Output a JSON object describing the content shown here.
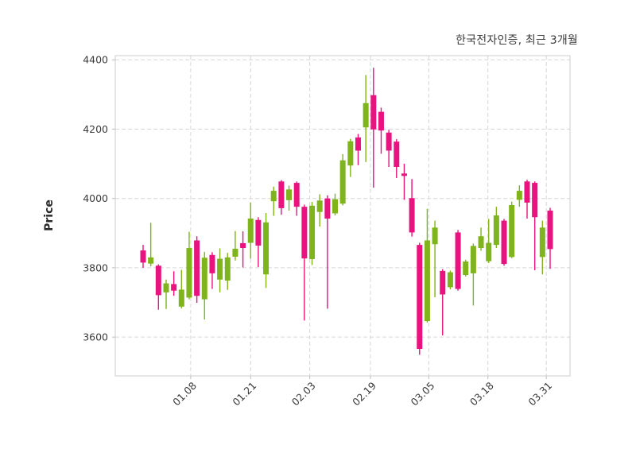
{
  "chart_data": {
    "type": "candlestick",
    "title": "한국전자인증, 최근 3개월",
    "ylabel": "Price",
    "ylim": [
      3488,
      4412
    ],
    "y_ticks": [
      3600,
      3800,
      4000,
      4200,
      4400
    ],
    "x_tick_labels": [
      "01.08",
      "01.21",
      "02.03",
      "02.19",
      "03.05",
      "03.18",
      "03.31"
    ],
    "x_tick_positions": [
      6.2,
      14.0,
      21.7,
      29.6,
      37.2,
      44.9,
      52.5
    ],
    "grid": true,
    "legend": "none",
    "colors": {
      "up": "#7fb41c",
      "down": "#e8137f",
      "grid": "#d6d6d6",
      "border": "#cccccc",
      "text": "#3b3b3b"
    },
    "candles_format": [
      "open",
      "high",
      "low",
      "close"
    ],
    "candles": [
      [
        3850,
        3866,
        3800,
        3815
      ],
      [
        3812,
        3930,
        3804,
        3830
      ],
      [
        3806,
        3810,
        3679,
        3721
      ],
      [
        3729,
        3766,
        3681,
        3755
      ],
      [
        3753,
        3790,
        3719,
        3734
      ],
      [
        3688,
        3794,
        3683,
        3737
      ],
      [
        3714,
        3904,
        3709,
        3857
      ],
      [
        3879,
        3891,
        3699,
        3719
      ],
      [
        3709,
        3846,
        3651,
        3829
      ],
      [
        3837,
        3845,
        3739,
        3784
      ],
      [
        3766,
        3856,
        3729,
        3826
      ],
      [
        3763,
        3843,
        3736,
        3830
      ],
      [
        3832,
        3906,
        3821,
        3855
      ],
      [
        3871,
        3905,
        3801,
        3857
      ],
      [
        3872,
        3988,
        3826,
        3942
      ],
      [
        3938,
        3946,
        3802,
        3864
      ],
      [
        3781,
        3958,
        3742,
        3931
      ],
      [
        3992,
        4034,
        3950,
        4022
      ],
      [
        4049,
        4053,
        3953,
        3972
      ],
      [
        3995,
        4037,
        3965,
        4026
      ],
      [
        4045,
        4049,
        3950,
        3976
      ],
      [
        3976,
        3982,
        3648,
        3827
      ],
      [
        3825,
        3990,
        3808,
        3979
      ],
      [
        3961,
        4012,
        3919,
        3994
      ],
      [
        4000,
        4009,
        3682,
        3942
      ],
      [
        3957,
        4014,
        3951,
        3998
      ],
      [
        3985,
        4128,
        3980,
        4110
      ],
      [
        4095,
        4172,
        4062,
        4165
      ],
      [
        4176,
        4186,
        4096,
        4138
      ],
      [
        4205,
        4356,
        4105,
        4275
      ],
      [
        4298,
        4377,
        4031,
        4199
      ],
      [
        4250,
        4262,
        4129,
        4196
      ],
      [
        4190,
        4198,
        4091,
        4138
      ],
      [
        4164,
        4171,
        4059,
        4091
      ],
      [
        4072,
        4100,
        3996,
        4065
      ],
      [
        4001,
        4056,
        3890,
        3902
      ],
      [
        3866,
        3872,
        3549,
        3566
      ],
      [
        3646,
        3970,
        3642,
        3879
      ],
      [
        3868,
        3936,
        3715,
        3916
      ],
      [
        3791,
        3796,
        3605,
        3723
      ],
      [
        3744,
        3792,
        3738,
        3787
      ],
      [
        3902,
        3909,
        3734,
        3739
      ],
      [
        3779,
        3823,
        3775,
        3818
      ],
      [
        3784,
        3870,
        3691,
        3863
      ],
      [
        3857,
        3916,
        3849,
        3891
      ],
      [
        3819,
        3941,
        3814,
        3872
      ],
      [
        3866,
        3976,
        3857,
        3951
      ],
      [
        3936,
        3941,
        3806,
        3811
      ],
      [
        3831,
        3991,
        3828,
        3981
      ],
      [
        3996,
        4038,
        3976,
        4022
      ],
      [
        4049,
        4054,
        3942,
        3988
      ],
      [
        4045,
        4049,
        3793,
        3946
      ],
      [
        3831,
        3936,
        3781,
        3916
      ],
      [
        3965,
        3973,
        3797,
        3854
      ]
    ]
  }
}
